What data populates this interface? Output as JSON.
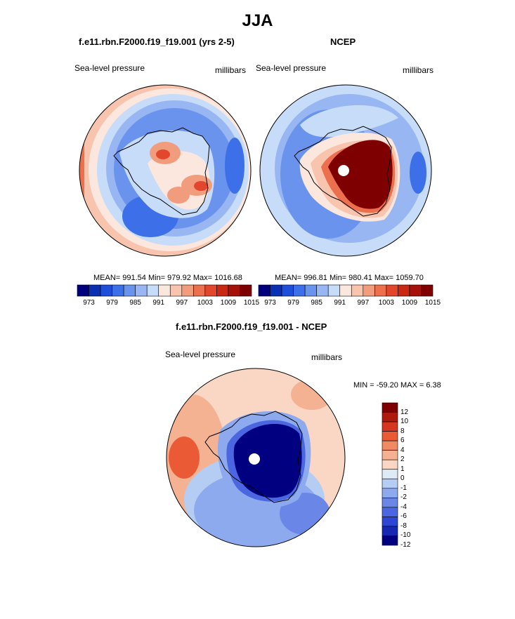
{
  "title": "JJA",
  "colors": {
    "palette": [
      "#00007f",
      "#0a2fb0",
      "#1f4fd8",
      "#3d6fe8",
      "#6a93ee",
      "#98b7f2",
      "#c7dcf8",
      "#fbe7dd",
      "#f8c4ae",
      "#f29c7e",
      "#ec6f4e",
      "#e2462c",
      "#c92913",
      "#a4120a",
      "#7f0000"
    ],
    "diff_palette": [
      "#7f0000",
      "#b01a0e",
      "#d6351f",
      "#ea5a35",
      "#f08a62",
      "#f4b292",
      "#fad7c4",
      "#dfeaf7",
      "#b6cdf3",
      "#8eaaee",
      "#6a87e8",
      "#4a66e0",
      "#2d46d4",
      "#1528b4",
      "#000080"
    ],
    "coast": "#000000"
  },
  "panels": [
    {
      "title": "f.e11.rbn.F2000.f19_f19.001 (yrs 2-5)",
      "left_label": "Sea-level pressure",
      "right_label": "millibars",
      "stats": "MEAN= 991.54  Min= 979.92  Max= 1016.68",
      "colorbar_ticks": [
        "973",
        "979",
        "985",
        "991",
        "997",
        "1003",
        "1009",
        "1015"
      ]
    },
    {
      "title": "NCEP",
      "left_label": "Sea-level pressure",
      "right_label": "millibars",
      "stats": "MEAN= 996.81  Min= 980.41  Max= 1059.70",
      "colorbar_ticks": [
        "973",
        "979",
        "985",
        "991",
        "997",
        "1003",
        "1009",
        "1015"
      ]
    },
    {
      "title": "f.e11.rbn.F2000.f19_f19.001 - NCEP",
      "left_label": "Sea-level pressure",
      "right_label": "millibars",
      "stats": "MIN = -59.20 MAX =   6.38",
      "colorbar_ticks": [
        "12",
        "10",
        "8",
        "6",
        "4",
        "2",
        "1",
        "0",
        "-1",
        "-2",
        "-4",
        "-6",
        "-8",
        "-10",
        "-12"
      ]
    }
  ]
}
